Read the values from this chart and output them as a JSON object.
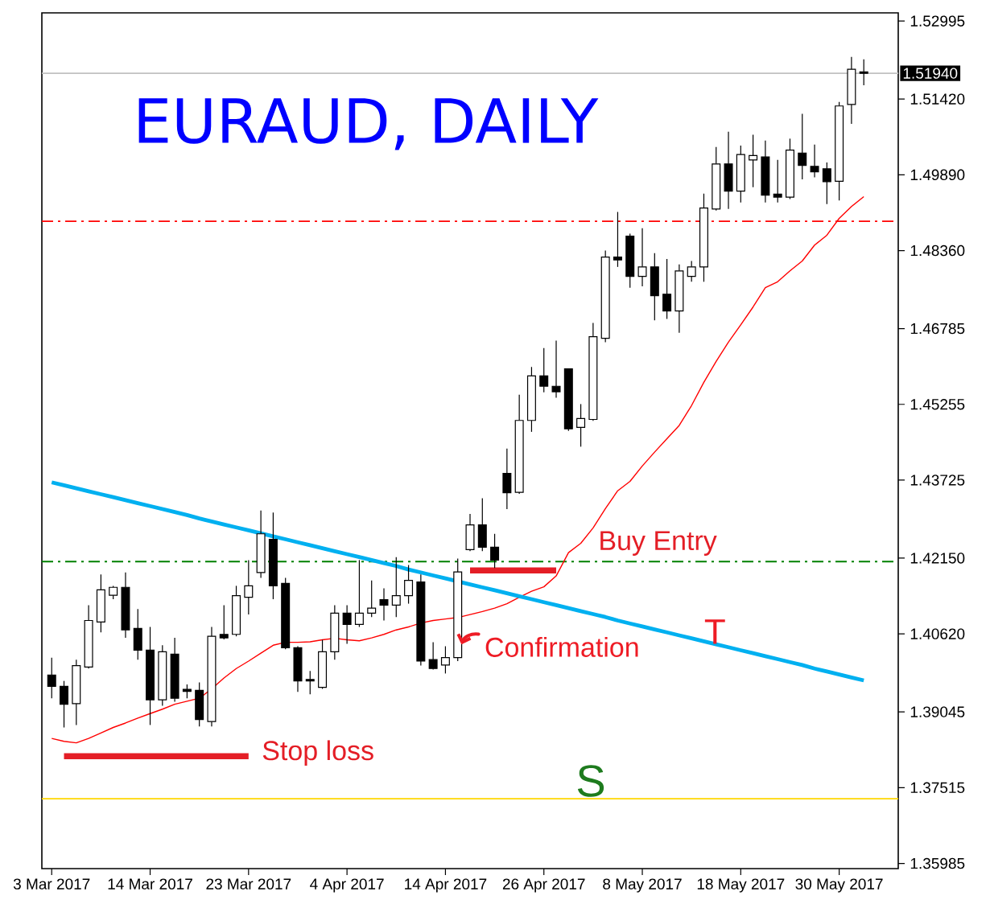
{
  "chart_data": {
    "type": "candlestick",
    "title": "EURAUD, DAILY",
    "categories": [
      "3 Mar 2017",
      null,
      null,
      null,
      null,
      null,
      null,
      null,
      "14 Mar 2017",
      null,
      null,
      null,
      null,
      null,
      null,
      null,
      "23 Mar 2017",
      null,
      null,
      null,
      null,
      null,
      null,
      null,
      "4 Apr 2017",
      null,
      null,
      null,
      null,
      null,
      null,
      null,
      "14 Apr 2017",
      null,
      null,
      null,
      null,
      null,
      null,
      null,
      "26 Apr 2017",
      null,
      null,
      null,
      null,
      null,
      null,
      null,
      "8 May 2017",
      null,
      null,
      null,
      null,
      null,
      null,
      null,
      "18 May 2017",
      null,
      null,
      null,
      null,
      null,
      null,
      null,
      "30 May 2017",
      null,
      null
    ],
    "ohlc": [
      [
        1.3979,
        1.4014,
        1.3932,
        1.3956
      ],
      [
        1.3956,
        1.3967,
        1.3873,
        1.392
      ],
      [
        1.3921,
        1.401,
        1.3878,
        1.3998
      ],
      [
        1.3995,
        1.412,
        1.3992,
        1.4089
      ],
      [
        1.4086,
        1.4182,
        1.4065,
        1.4151
      ],
      [
        1.414,
        1.4159,
        1.4132,
        1.4156
      ],
      [
        1.4156,
        1.4186,
        1.4054,
        1.407
      ],
      [
        1.4073,
        1.4112,
        1.401,
        1.4029
      ],
      [
        1.4029,
        1.4076,
        1.3878,
        1.3929
      ],
      [
        1.3929,
        1.4039,
        1.3917,
        1.4026
      ],
      [
        1.4021,
        1.4054,
        1.3925,
        1.3932
      ],
      [
        1.395,
        1.396,
        1.3932,
        1.3946
      ],
      [
        1.3948,
        1.3964,
        1.3875,
        1.3889
      ],
      [
        1.3885,
        1.4076,
        1.3875,
        1.4057
      ],
      [
        1.4061,
        1.412,
        1.4051,
        1.4054
      ],
      [
        1.4061,
        1.4159,
        1.4057,
        1.4139
      ],
      [
        1.4136,
        1.4211,
        1.4101,
        1.4159
      ],
      [
        1.4186,
        1.4311,
        1.4175,
        1.4264
      ],
      [
        1.4253,
        1.4307,
        1.4132,
        1.4159
      ],
      [
        1.4164,
        1.4175,
        1.4031,
        1.4034
      ],
      [
        1.4034,
        1.4037,
        1.3945,
        1.3967
      ],
      [
        1.397,
        1.3987,
        1.394,
        1.3967
      ],
      [
        1.3954,
        1.405,
        1.3951,
        1.4026
      ],
      [
        1.4026,
        1.412,
        1.401,
        1.4104
      ],
      [
        1.4104,
        1.412,
        1.4042,
        1.4081
      ],
      [
        1.4081,
        1.4211,
        1.4076,
        1.4104
      ],
      [
        1.4104,
        1.417,
        1.4096,
        1.4114
      ],
      [
        1.4131,
        1.4154,
        1.4089,
        1.412
      ],
      [
        1.412,
        1.4217,
        1.4096,
        1.4139
      ],
      [
        1.4139,
        1.4201,
        1.4123,
        1.417
      ],
      [
        1.4167,
        1.4182,
        1.3998,
        1.4007
      ],
      [
        1.401,
        1.4045,
        1.399,
        1.3992
      ],
      [
        1.3999,
        1.4037,
        1.3982,
        1.4014
      ],
      [
        1.4014,
        1.4214,
        1.4007,
        1.4187
      ],
      [
        1.4232,
        1.4304,
        1.4229,
        1.4282
      ],
      [
        1.4282,
        1.4336,
        1.4229,
        1.4237
      ],
      [
        1.4237,
        1.4264,
        1.4195,
        1.4211
      ],
      [
        1.4386,
        1.4436,
        1.4314,
        1.4347
      ],
      [
        1.4348,
        1.4545,
        1.4345,
        1.4493
      ],
      [
        1.4493,
        1.4601,
        1.447,
        1.4583
      ],
      [
        1.4583,
        1.4639,
        1.455,
        1.4562
      ],
      [
        1.4562,
        1.4654,
        1.4539,
        1.4551
      ],
      [
        1.4597,
        1.4598,
        1.4472,
        1.4476
      ],
      [
        1.4479,
        1.4526,
        1.444,
        1.4497
      ],
      [
        1.4495,
        1.469,
        1.4492,
        1.4662
      ],
      [
        1.4659,
        1.4836,
        1.4651,
        1.4823
      ],
      [
        1.4823,
        1.4914,
        1.4803,
        1.4817
      ],
      [
        1.4865,
        1.487,
        1.4761,
        1.4784
      ],
      [
        1.4784,
        1.4881,
        1.4764,
        1.4803
      ],
      [
        1.4803,
        1.4831,
        1.4695,
        1.4745
      ],
      [
        1.4748,
        1.4819,
        1.4698,
        1.4714
      ],
      [
        1.4714,
        1.4808,
        1.467,
        1.4795
      ],
      [
        1.4784,
        1.4815,
        1.4773,
        1.4803
      ],
      [
        1.4803,
        1.4951,
        1.4773,
        1.4922
      ],
      [
        1.492,
        1.5045,
        1.4917,
        1.5011
      ],
      [
        1.5011,
        1.5076,
        1.492,
        1.4956
      ],
      [
        1.4956,
        1.5048,
        1.4933,
        1.503
      ],
      [
        1.5019,
        1.507,
        1.4964,
        1.5028
      ],
      [
        1.5025,
        1.5058,
        1.4933,
        1.4948
      ],
      [
        1.495,
        1.5019,
        1.4933,
        1.4944
      ],
      [
        1.4944,
        1.5062,
        1.494,
        1.5039
      ],
      [
        1.5033,
        1.5112,
        1.498,
        1.5008
      ],
      [
        1.5006,
        1.505,
        1.4984,
        1.4995
      ],
      [
        1.5001,
        1.5014,
        1.493,
        1.4975
      ],
      [
        1.4976,
        1.5136,
        1.4937,
        1.5128
      ],
      [
        1.5131,
        1.5227,
        1.5092,
        1.5202
      ],
      [
        1.5197,
        1.5222,
        1.517,
        1.5194
      ]
    ],
    "series": [
      {
        "type": "line",
        "color": "#ff0000",
        "values": [
          1.3851,
          1.3845,
          1.3842,
          1.3851,
          1.3862,
          1.3873,
          1.3882,
          1.3892,
          1.3901,
          1.391,
          1.392,
          1.3926,
          1.3932,
          1.3951,
          1.3973,
          1.3992,
          1.4007,
          1.4023,
          1.4039,
          1.4045,
          1.4045,
          1.4046,
          1.405,
          1.4053,
          1.405,
          1.4048,
          1.4054,
          1.4061,
          1.407,
          1.4076,
          1.4084,
          1.4089,
          1.4092,
          1.4095,
          1.4101,
          1.4107,
          1.4114,
          1.4123,
          1.4136,
          1.4148,
          1.4157,
          1.4179,
          1.4226,
          1.4245,
          1.4276,
          1.4315,
          1.4351,
          1.437,
          1.4401,
          1.4429,
          1.4456,
          1.4483,
          1.4523,
          1.457,
          1.4612,
          1.4651,
          1.4686,
          1.4722,
          1.4761,
          1.4773,
          1.4795,
          1.4815,
          1.4847,
          1.4867,
          1.4901,
          1.4925,
          1.4945
        ]
      },
      {
        "type": "line",
        "color": "#00b0f0",
        "values": [
          1.4368,
          1.4362,
          1.4356,
          1.435,
          1.4344,
          1.4338,
          1.4332,
          1.4326,
          1.432,
          1.4314,
          1.4308,
          1.4302,
          1.4295,
          1.4289,
          1.4283,
          1.4277,
          1.4271,
          1.4265,
          1.4259,
          1.4253,
          1.4247,
          1.4241,
          1.4235,
          1.4229,
          1.4223,
          1.4217,
          1.4211,
          1.4205,
          1.4199,
          1.4192,
          1.4186,
          1.418,
          1.4174,
          1.4168,
          1.4162,
          1.4156,
          1.415,
          1.4144,
          1.4138,
          1.4132,
          1.4126,
          1.412,
          1.4114,
          1.4108,
          1.4102,
          1.4096,
          1.4089,
          1.4083,
          1.4077,
          1.4071,
          1.4065,
          1.4059,
          1.4053,
          1.4047,
          1.4041,
          1.4035,
          1.4029,
          1.4023,
          1.4017,
          1.4011,
          1.4005,
          1.3999,
          1.3992,
          1.3986,
          1.398,
          1.3974,
          1.3968
        ]
      },
      {
        "type": "line",
        "name": "Stop loss",
        "color": "#e41e26",
        "values": [
          null,
          1.3815,
          1.3815,
          1.3815,
          1.3815,
          1.3815,
          1.3815,
          1.3815,
          1.3815,
          1.3815,
          1.3815,
          1.3815,
          1.3815,
          1.3815,
          1.3815,
          1.3815,
          1.3815,
          null,
          null,
          null,
          null,
          null,
          null,
          null,
          null,
          null,
          null,
          null,
          null,
          null,
          null,
          null,
          null,
          null,
          null,
          null,
          null,
          null,
          null,
          null,
          null,
          null,
          null,
          null,
          null,
          null,
          null,
          null,
          null,
          null,
          null,
          null,
          null,
          null,
          null,
          null,
          null,
          null,
          null,
          null,
          null,
          null,
          null,
          null,
          null,
          null,
          null
        ]
      },
      {
        "type": "line",
        "name": "Buy Entry",
        "color": "#e41e26",
        "values": [
          null,
          null,
          null,
          null,
          null,
          null,
          null,
          null,
          null,
          null,
          null,
          null,
          null,
          null,
          null,
          null,
          null,
          null,
          null,
          null,
          null,
          null,
          null,
          null,
          null,
          null,
          null,
          null,
          null,
          null,
          null,
          null,
          null,
          null,
          1.419,
          1.419,
          1.419,
          1.419,
          1.419,
          1.419,
          1.419,
          1.419,
          null,
          null,
          null,
          null,
          null,
          null,
          null,
          null,
          null,
          null,
          null,
          null,
          null,
          null,
          null,
          null,
          null,
          null,
          null,
          null,
          null,
          null,
          null,
          null,
          null
        ]
      }
    ],
    "ylim": [
      1.3588,
      1.5316
    ],
    "yticks": [
      1.52995,
      {
        "value": 1.5142,
        "label": "1.51420"
      },
      {
        "value": 1.4989,
        "label": "1.49890"
      },
      {
        "value": 1.4836,
        "label": "1.48360"
      },
      1.46785,
      1.45255,
      1.43725,
      {
        "value": 1.4215,
        "label": "1.42150"
      },
      {
        "value": 1.4062,
        "label": "1.40620"
      },
      1.39045,
      1.37515,
      1.35985
    ],
    "ref_lines": [
      {
        "axis": "y",
        "value": 1.5194,
        "color": "#c0c0c0",
        "label": "1.51940"
      },
      {
        "axis": "y",
        "value": 1.4895,
        "color": "#ff0000",
        "line_style": "dashdot"
      },
      {
        "axis": "y",
        "value": 1.4208,
        "color": "#008000",
        "line_style": "dashdot"
      },
      {
        "axis": "y",
        "value": 1.3729,
        "color": "#ffd700",
        "label": "S"
      }
    ],
    "annotations": [
      "Confirmation",
      "T"
    ]
  }
}
